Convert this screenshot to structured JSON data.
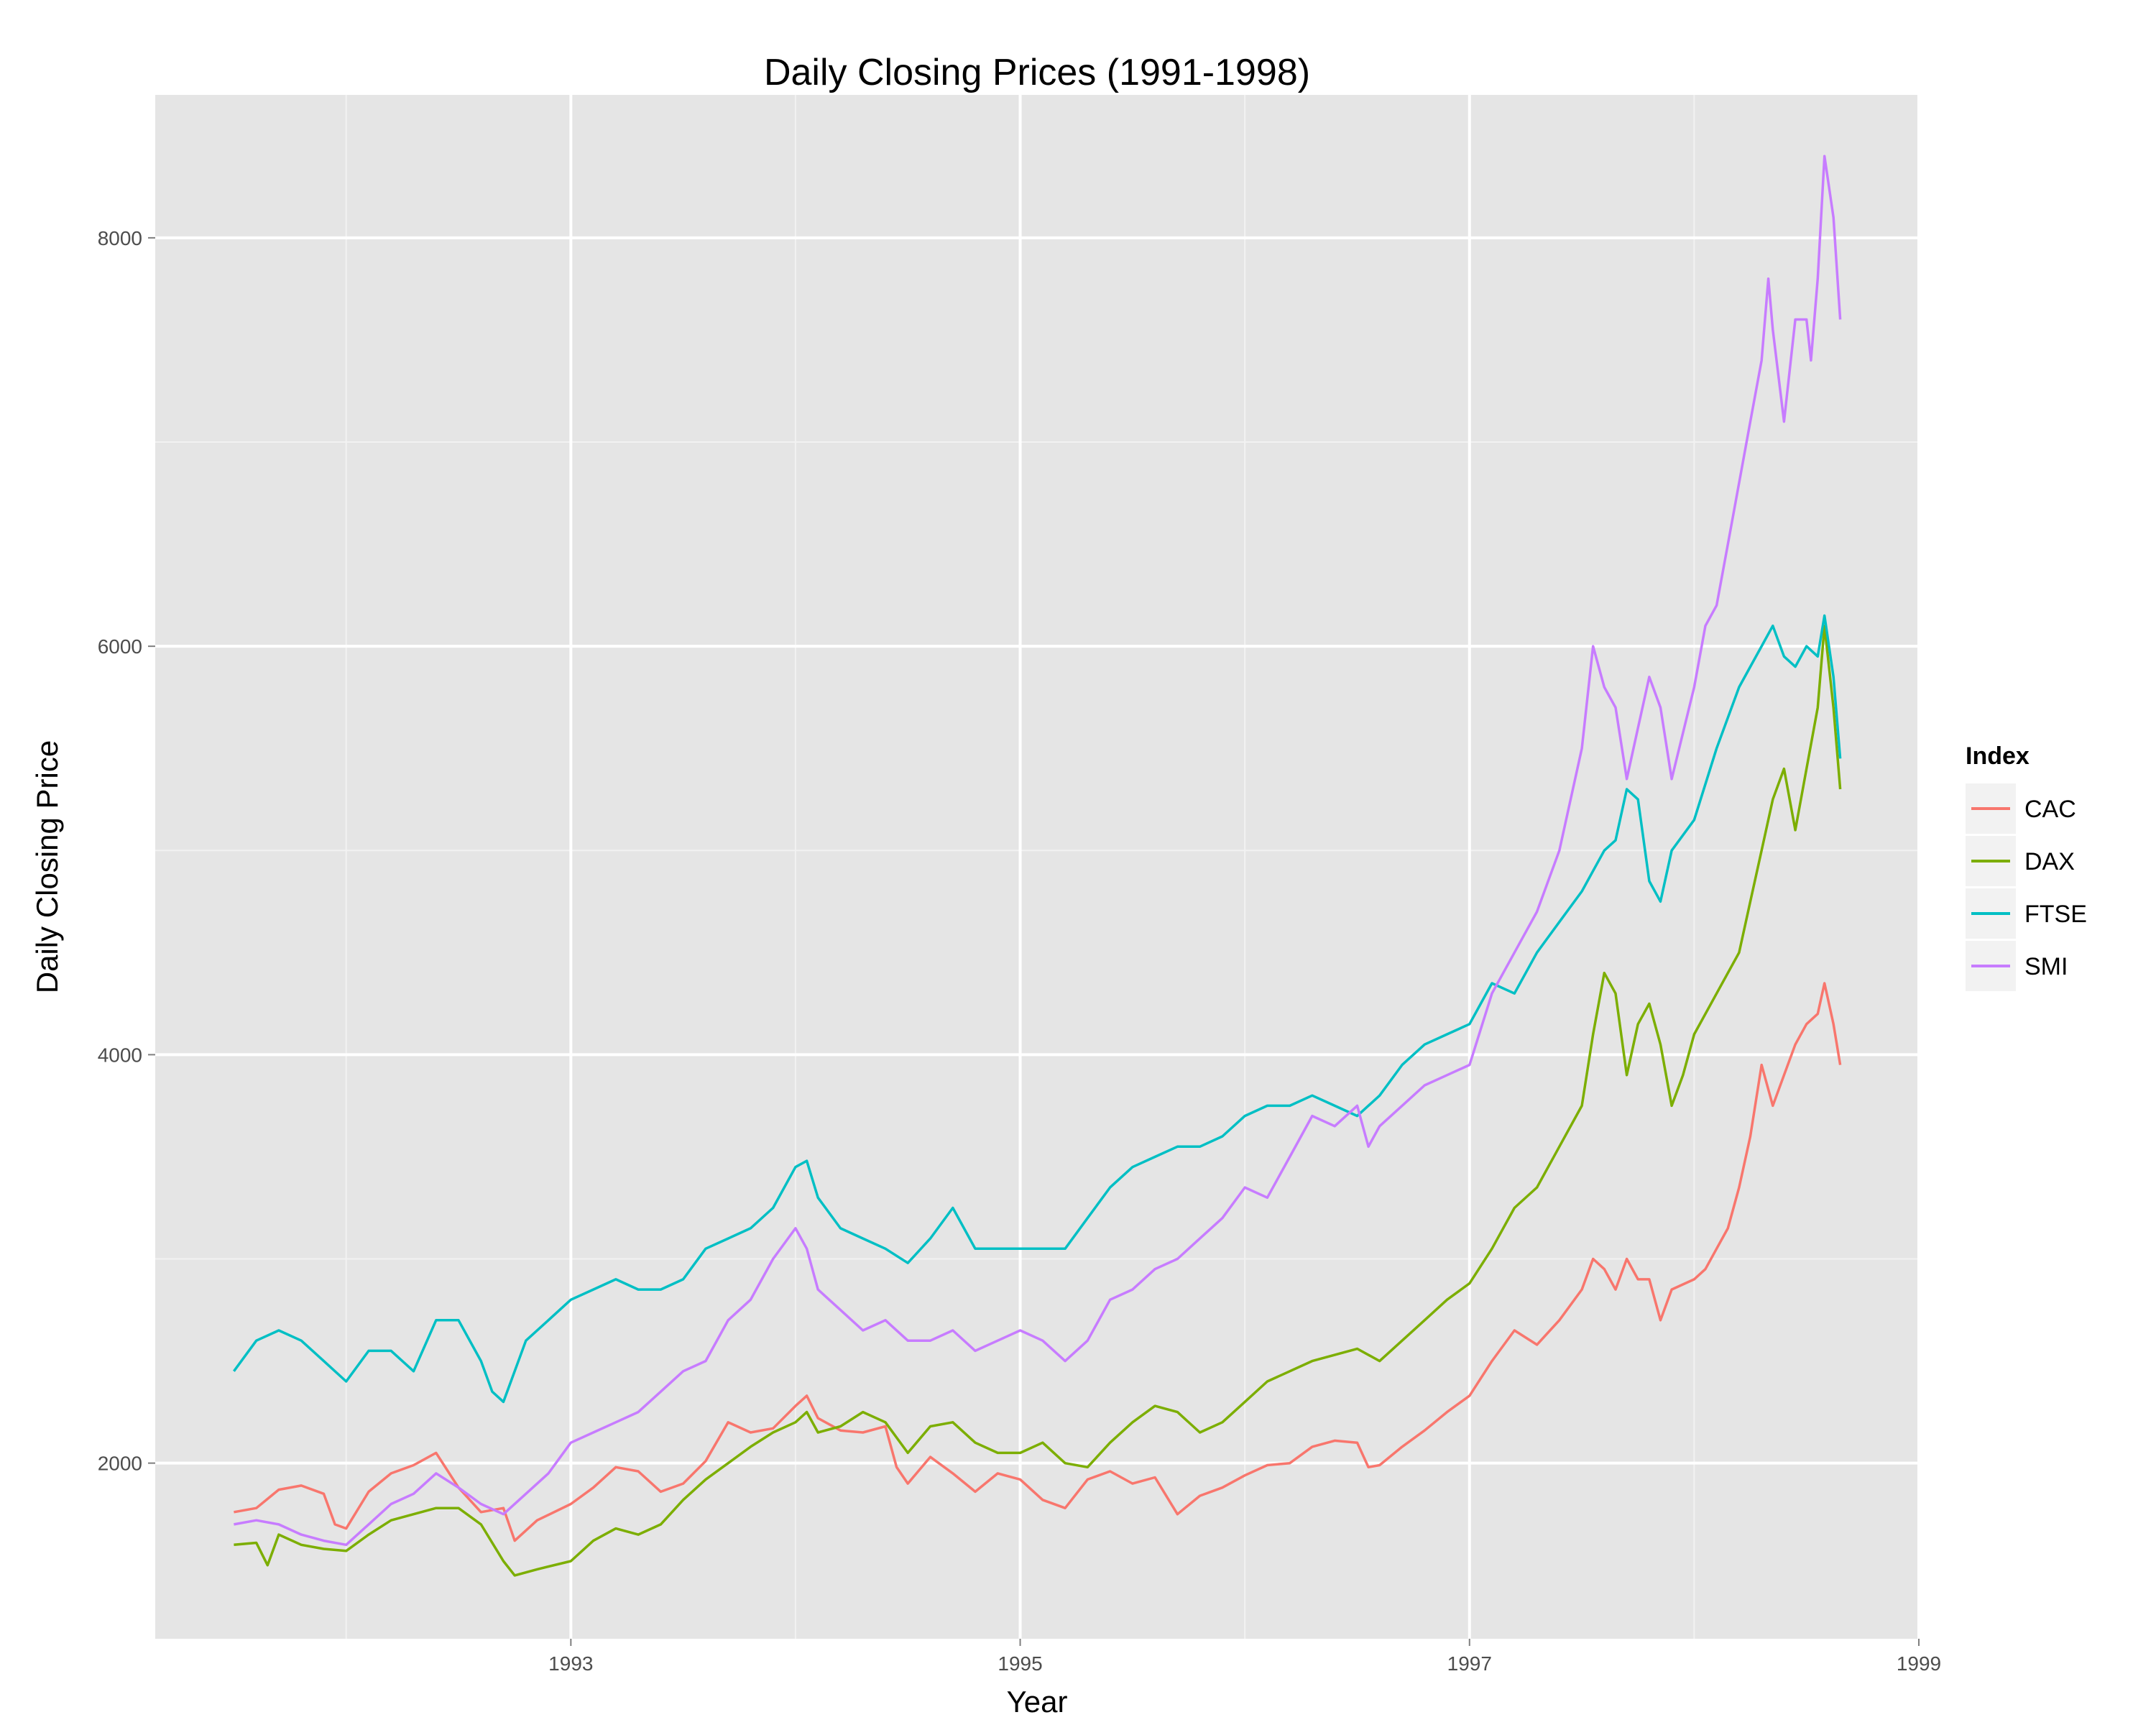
{
  "chart_data": {
    "type": "line",
    "title": "Daily Closing Prices (1991-1998)",
    "xlabel": "Year",
    "ylabel": "Daily Closing Price",
    "xlim": [
      1991.15,
      1999.0
    ],
    "ylim": [
      1140,
      8700
    ],
    "x_ticks": [
      1993,
      1995,
      1997,
      1999
    ],
    "x_minor_ticks": [
      1992,
      1994,
      1996,
      1998
    ],
    "y_ticks": [
      2000,
      4000,
      6000,
      8000
    ],
    "y_minor_ticks": [
      3000,
      5000,
      7000
    ],
    "grid": true,
    "legend_title": "Index",
    "legend_position": "right",
    "series": [
      {
        "name": "CAC",
        "color": "#F8766D",
        "x": [
          1991.5,
          1991.6,
          1991.7,
          1991.8,
          1991.9,
          1991.95,
          1992.0,
          1992.1,
          1992.2,
          1992.3,
          1992.4,
          1992.5,
          1992.6,
          1992.7,
          1992.75,
          1992.85,
          1993.0,
          1993.1,
          1993.2,
          1993.3,
          1993.4,
          1993.5,
          1993.6,
          1993.7,
          1993.8,
          1993.9,
          1994.0,
          1994.05,
          1994.1,
          1994.2,
          1994.3,
          1994.4,
          1994.45,
          1994.5,
          1994.6,
          1994.7,
          1994.8,
          1994.9,
          1995.0,
          1995.1,
          1995.2,
          1995.3,
          1995.4,
          1995.5,
          1995.6,
          1995.7,
          1995.8,
          1995.9,
          1996.0,
          1996.1,
          1996.2,
          1996.3,
          1996.4,
          1996.5,
          1996.55,
          1996.6,
          1996.7,
          1996.8,
          1996.9,
          1997.0,
          1997.1,
          1997.2,
          1997.3,
          1997.4,
          1997.5,
          1997.55,
          1997.6,
          1997.65,
          1997.7,
          1997.75,
          1997.8,
          1997.85,
          1997.9,
          1998.0,
          1998.05,
          1998.1,
          1998.15,
          1998.2,
          1998.25,
          1998.3,
          1998.35,
          1998.4,
          1998.45,
          1998.5,
          1998.55,
          1998.58,
          1998.62,
          1998.65
        ],
        "y": [
          1760,
          1780,
          1870,
          1890,
          1850,
          1700,
          1680,
          1860,
          1950,
          1990,
          2050,
          1880,
          1760,
          1780,
          1620,
          1720,
          1800,
          1880,
          1980,
          1960,
          1860,
          1900,
          2010,
          2200,
          2150,
          2170,
          2280,
          2330,
          2220,
          2160,
          2150,
          2180,
          1980,
          1900,
          2030,
          1950,
          1860,
          1950,
          1920,
          1820,
          1780,
          1920,
          1960,
          1900,
          1930,
          1750,
          1840,
          1880,
          1940,
          1990,
          2000,
          2080,
          2110,
          2100,
          1980,
          1990,
          2080,
          2160,
          2250,
          2330,
          2500,
          2650,
          2580,
          2700,
          2850,
          3000,
          2950,
          2850,
          3000,
          2900,
          2900,
          2700,
          2850,
          2900,
          2950,
          3050,
          3150,
          3350,
          3600,
          3950,
          3750,
          3900,
          4050,
          4150,
          4200,
          4350,
          4150,
          3950
        ]
      },
      {
        "name": "DAX",
        "color": "#7CAE00",
        "x": [
          1991.5,
          1991.6,
          1991.65,
          1991.7,
          1991.8,
          1991.9,
          1992.0,
          1992.1,
          1992.2,
          1992.3,
          1992.4,
          1992.5,
          1992.6,
          1992.7,
          1992.75,
          1992.85,
          1993.0,
          1993.1,
          1993.2,
          1993.3,
          1993.4,
          1993.5,
          1993.6,
          1993.7,
          1993.8,
          1993.9,
          1994.0,
          1994.05,
          1994.1,
          1994.2,
          1994.3,
          1994.4,
          1994.5,
          1994.6,
          1994.7,
          1994.8,
          1994.9,
          1995.0,
          1995.1,
          1995.2,
          1995.3,
          1995.4,
          1995.5,
          1995.6,
          1995.7,
          1995.8,
          1995.9,
          1996.0,
          1996.1,
          1996.2,
          1996.3,
          1996.4,
          1996.5,
          1996.6,
          1996.7,
          1996.8,
          1996.9,
          1997.0,
          1997.1,
          1997.2,
          1997.3,
          1997.4,
          1997.5,
          1997.55,
          1997.6,
          1997.65,
          1997.7,
          1997.75,
          1997.8,
          1997.85,
          1997.9,
          1997.95,
          1998.0,
          1998.1,
          1998.2,
          1998.25,
          1998.3,
          1998.35,
          1998.4,
          1998.45,
          1998.5,
          1998.55,
          1998.58,
          1998.62,
          1998.65
        ],
        "y": [
          1600,
          1610,
          1500,
          1650,
          1600,
          1580,
          1570,
          1650,
          1720,
          1750,
          1780,
          1780,
          1700,
          1520,
          1450,
          1480,
          1520,
          1620,
          1680,
          1650,
          1700,
          1820,
          1920,
          2000,
          2080,
          2150,
          2200,
          2250,
          2150,
          2180,
          2250,
          2200,
          2050,
          2180,
          2200,
          2100,
          2050,
          2050,
          2100,
          2000,
          1980,
          2100,
          2200,
          2280,
          2250,
          2150,
          2200,
          2300,
          2400,
          2450,
          2500,
          2530,
          2560,
          2500,
          2600,
          2700,
          2800,
          2880,
          3050,
          3250,
          3350,
          3550,
          3750,
          4100,
          4400,
          4300,
          3900,
          4150,
          4250,
          4050,
          3750,
          3900,
          4100,
          4300,
          4500,
          4750,
          5000,
          5250,
          5400,
          5100,
          5400,
          5700,
          6100,
          5700,
          5300
        ]
      },
      {
        "name": "FTSE",
        "color": "#00BFC4",
        "x": [
          1991.5,
          1991.6,
          1991.7,
          1991.8,
          1991.9,
          1992.0,
          1992.1,
          1992.2,
          1992.3,
          1992.4,
          1992.5,
          1992.6,
          1992.65,
          1992.7,
          1992.8,
          1992.9,
          1993.0,
          1993.1,
          1993.2,
          1993.3,
          1993.4,
          1993.5,
          1993.6,
          1993.7,
          1993.8,
          1993.9,
          1994.0,
          1994.05,
          1994.1,
          1994.2,
          1994.3,
          1994.4,
          1994.5,
          1994.6,
          1994.7,
          1994.8,
          1994.9,
          1995.0,
          1995.1,
          1995.2,
          1995.3,
          1995.4,
          1995.5,
          1995.6,
          1995.7,
          1995.8,
          1995.9,
          1996.0,
          1996.1,
          1996.2,
          1996.3,
          1996.4,
          1996.5,
          1996.6,
          1996.7,
          1996.8,
          1996.9,
          1997.0,
          1997.1,
          1997.2,
          1997.3,
          1997.4,
          1997.5,
          1997.55,
          1997.6,
          1997.65,
          1997.7,
          1997.75,
          1997.8,
          1997.85,
          1997.9,
          1998.0,
          1998.1,
          1998.2,
          1998.25,
          1998.3,
          1998.35,
          1998.4,
          1998.45,
          1998.5,
          1998.55,
          1998.58,
          1998.62,
          1998.65
        ],
        "y": [
          2450,
          2600,
          2650,
          2600,
          2500,
          2400,
          2550,
          2550,
          2450,
          2700,
          2700,
          2500,
          2350,
          2300,
          2600,
          2700,
          2800,
          2850,
          2900,
          2850,
          2850,
          2900,
          3050,
          3100,
          3150,
          3250,
          3450,
          3480,
          3300,
          3150,
          3100,
          3050,
          2980,
          3100,
          3250,
          3050,
          3050,
          3050,
          3050,
          3050,
          3200,
          3350,
          3450,
          3500,
          3550,
          3550,
          3600,
          3700,
          3750,
          3750,
          3800,
          3750,
          3700,
          3800,
          3950,
          4050,
          4100,
          4150,
          4350,
          4300,
          4500,
          4650,
          4800,
          4900,
          5000,
          5050,
          5300,
          5250,
          4850,
          4750,
          5000,
          5150,
          5500,
          5800,
          5900,
          6000,
          6100,
          5950,
          5900,
          6000,
          5950,
          6150,
          5850,
          5450
        ]
      },
      {
        "name": "SMI",
        "color": "#C77CFF",
        "x": [
          1991.5,
          1991.6,
          1991.7,
          1991.8,
          1991.9,
          1992.0,
          1992.1,
          1992.2,
          1992.3,
          1992.4,
          1992.5,
          1992.6,
          1992.7,
          1992.8,
          1992.9,
          1993.0,
          1993.1,
          1993.2,
          1993.3,
          1993.4,
          1993.5,
          1993.6,
          1993.7,
          1993.8,
          1993.9,
          1994.0,
          1994.05,
          1994.1,
          1994.15,
          1994.2,
          1994.3,
          1994.4,
          1994.5,
          1994.6,
          1994.7,
          1994.8,
          1994.9,
          1995.0,
          1995.1,
          1995.2,
          1995.3,
          1995.4,
          1995.5,
          1995.6,
          1995.7,
          1995.8,
          1995.9,
          1996.0,
          1996.1,
          1996.2,
          1996.3,
          1996.4,
          1996.5,
          1996.55,
          1996.6,
          1996.7,
          1996.8,
          1996.9,
          1997.0,
          1997.1,
          1997.2,
          1997.3,
          1997.4,
          1997.5,
          1997.55,
          1997.6,
          1997.65,
          1997.7,
          1997.75,
          1997.8,
          1997.85,
          1997.9,
          1998.0,
          1998.05,
          1998.1,
          1998.15,
          1998.2,
          1998.25,
          1998.3,
          1998.33,
          1998.35,
          1998.4,
          1998.45,
          1998.5,
          1998.52,
          1998.55,
          1998.58,
          1998.62,
          1998.65
        ],
        "y": [
          1700,
          1720,
          1700,
          1650,
          1620,
          1600,
          1700,
          1800,
          1850,
          1950,
          1880,
          1800,
          1750,
          1850,
          1950,
          2100,
          2150,
          2200,
          2250,
          2350,
          2450,
          2500,
          2700,
          2800,
          3000,
          3150,
          3050,
          2850,
          2800,
          2750,
          2650,
          2700,
          2600,
          2600,
          2650,
          2550,
          2600,
          2650,
          2600,
          2500,
          2600,
          2800,
          2850,
          2950,
          3000,
          3100,
          3200,
          3350,
          3300,
          3500,
          3700,
          3650,
          3750,
          3550,
          3650,
          3750,
          3850,
          3900,
          3950,
          4300,
          4500,
          4700,
          5000,
          5500,
          6000,
          5800,
          5700,
          5350,
          5600,
          5850,
          5700,
          5350,
          5800,
          6100,
          6200,
          6500,
          6800,
          7100,
          7400,
          7800,
          7550,
          7100,
          7600,
          7600,
          7400,
          7800,
          8400,
          8100,
          7600
        ]
      }
    ]
  }
}
